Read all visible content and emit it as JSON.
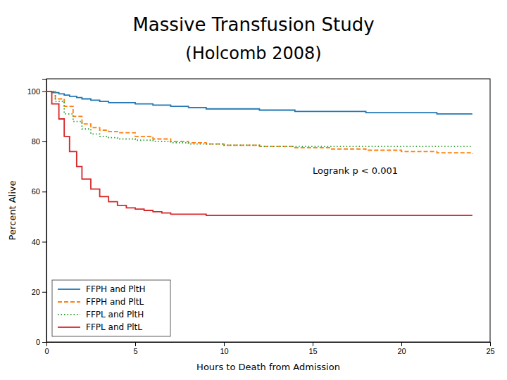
{
  "chart_data": {
    "type": "step",
    "title": "Massive Transfusion Study",
    "subtitle": "(Holcomb 2008)",
    "x_label": "Hours to Death from Admission",
    "y_label": "Percent Alive",
    "annotation": "Logrank p < 0.001",
    "xlim": [
      0,
      25
    ],
    "ylim": [
      0,
      105
    ],
    "xticks": [
      0,
      5,
      10,
      15,
      20,
      25
    ],
    "yticks": [
      0,
      20,
      40,
      60,
      80,
      100
    ],
    "legend": "lower left",
    "series": [
      {
        "name": "FFPH and PltH",
        "line_style": "solid",
        "x": [
          0,
          0.3,
          0.7,
          1.0,
          1.3,
          1.7,
          2.0,
          2.5,
          3.0,
          3.5,
          4.0,
          5.0,
          6.0,
          7.0,
          8.0,
          9.0,
          10.0,
          12.0,
          14.0,
          16.0,
          18.0,
          20.0,
          22.0,
          24.0
        ],
        "values": [
          100,
          99.5,
          99,
          98.5,
          98,
          97.5,
          97,
          96.5,
          96,
          95.5,
          95.5,
          95,
          94.5,
          94,
          93.5,
          93,
          93,
          92.5,
          92,
          92,
          91.5,
          91.5,
          91,
          91
        ]
      },
      {
        "name": "FFPH and PltL",
        "line_style": "dashed",
        "x": [
          0,
          0.5,
          1.0,
          1.5,
          2.0,
          2.5,
          3.0,
          3.5,
          4.0,
          5.0,
          6.0,
          7.0,
          8.0,
          9.0,
          10.0,
          12.0,
          14.0,
          16.0,
          18.0,
          20.0,
          22.0,
          24.0
        ],
        "values": [
          100,
          97,
          94,
          90,
          87,
          85.5,
          84.5,
          84,
          83.5,
          82,
          81,
          80,
          79.5,
          79,
          78.5,
          78,
          77.5,
          77,
          76.5,
          76,
          75.5,
          75
        ]
      },
      {
        "name": "FFPL and PltH",
        "line_style": "dotted",
        "x": [
          0,
          0.5,
          1.0,
          1.5,
          2.0,
          2.5,
          3.0,
          3.5,
          4.0,
          5.0,
          6.0,
          7.0,
          8.0,
          10.0,
          12.0,
          14.0,
          16.0,
          18.0,
          20.0,
          22.0,
          24.0
        ],
        "values": [
          100,
          96,
          91,
          88,
          85,
          83,
          82,
          81.5,
          81,
          80.5,
          80,
          79.5,
          79,
          78.5,
          78,
          78,
          78,
          78,
          78,
          78,
          78
        ]
      },
      {
        "name": "FFPL and PltL",
        "line_style": "solid",
        "x": [
          0,
          0.3,
          0.7,
          1.0,
          1.3,
          1.7,
          2.0,
          2.5,
          3.0,
          3.5,
          4.0,
          4.5,
          5.0,
          5.5,
          6.0,
          6.5,
          7.0,
          8.0,
          9.0,
          10.0,
          11.0,
          12.0,
          14.0,
          16.0,
          18.0,
          20.0,
          22.0,
          24.0
        ],
        "values": [
          100,
          95,
          89,
          82,
          76,
          70,
          65,
          61,
          58,
          56,
          54.5,
          53.5,
          53,
          52.5,
          52,
          51.5,
          51,
          51,
          50.5,
          50.5,
          50.5,
          50.5,
          50.5,
          50.5,
          50.5,
          50.5,
          50.5,
          50.5
        ]
      }
    ]
  }
}
